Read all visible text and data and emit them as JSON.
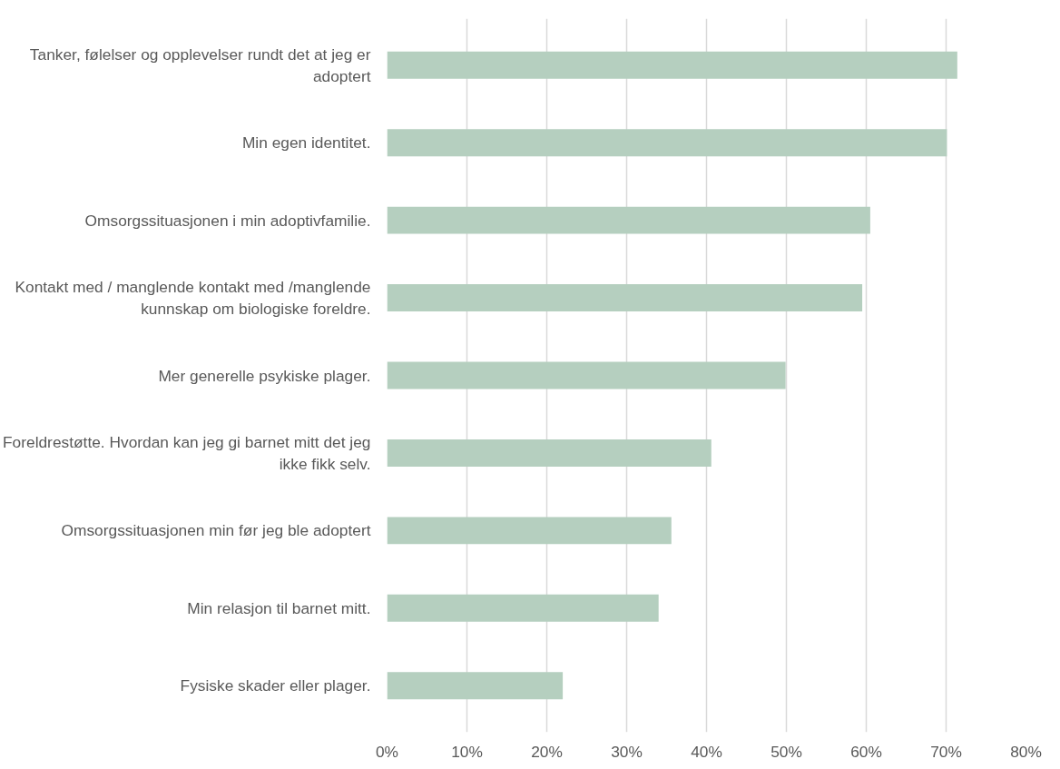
{
  "chart_data": {
    "type": "bar",
    "orientation": "horizontal",
    "categories": [
      "Tanker, følelser og opplevelser rundt det at jeg er adoptert",
      "Min egen identitet.",
      "Omsorgssituasjonen i min adoptivfamilie.",
      "Kontakt med / manglende kontakt med /manglende kunnskap om biologiske foreldre.",
      "Mer generelle psykiske plager.",
      "Foreldrestøtte. Hvordan kan jeg gi barnet mitt det jeg ikke fikk selv.",
      "Omsorgssituasjonen min før jeg ble adoptert",
      "Min relasjon til barnet mitt.",
      "Fysiske skader eller plager."
    ],
    "values": [
      71.4,
      70.1,
      60.5,
      59.5,
      49.9,
      40.6,
      35.6,
      34,
      22
    ],
    "color": "#b5cfbf",
    "xlim": [
      0,
      80
    ],
    "xticks": [
      {
        "value": 0,
        "label": "0%"
      },
      {
        "value": 10,
        "label": "10%"
      },
      {
        "value": 20,
        "label": "20%"
      },
      {
        "value": 30,
        "label": "30%"
      },
      {
        "value": 40,
        "label": "40%"
      },
      {
        "value": 50,
        "label": "50%"
      },
      {
        "value": 60,
        "label": "60%"
      },
      {
        "value": 70,
        "label": "70%"
      },
      {
        "value": 80,
        "label": "80%"
      }
    ],
    "grid": "x"
  }
}
